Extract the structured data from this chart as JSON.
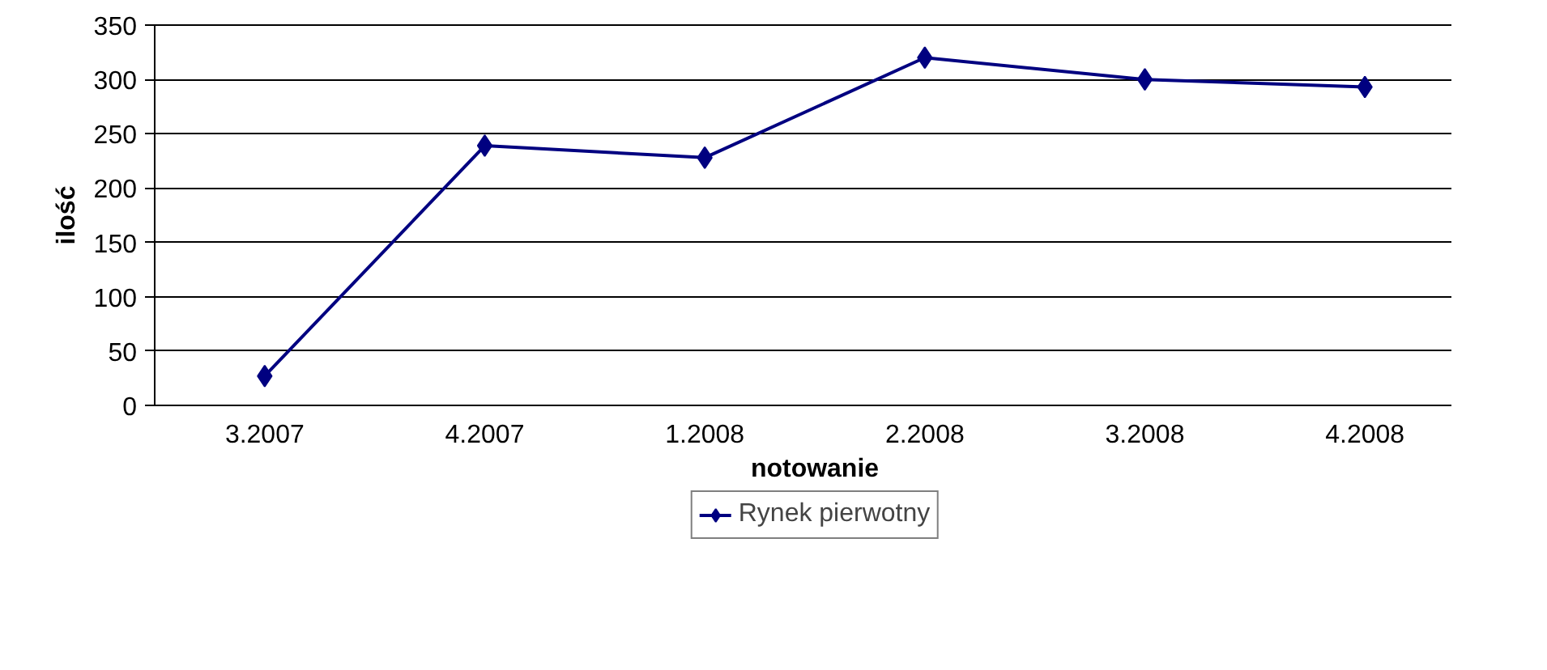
{
  "chart_data": {
    "type": "line",
    "xlabel": "notowanie",
    "ylabel": "ilość",
    "categories": [
      "3.2007",
      "4.2007",
      "1.2008",
      "2.2008",
      "3.2008",
      "4.2008"
    ],
    "series": [
      {
        "name": "Rynek pierwotny",
        "color": "#000080",
        "values": [
          27,
          239,
          228,
          320,
          300,
          293
        ]
      }
    ],
    "ylim": [
      0,
      350
    ],
    "yticks": [
      0,
      50,
      100,
      150,
      200,
      250,
      300,
      350
    ],
    "grid": "y",
    "legend": "bottom",
    "marker": "diamond",
    "line_style": "solid"
  }
}
